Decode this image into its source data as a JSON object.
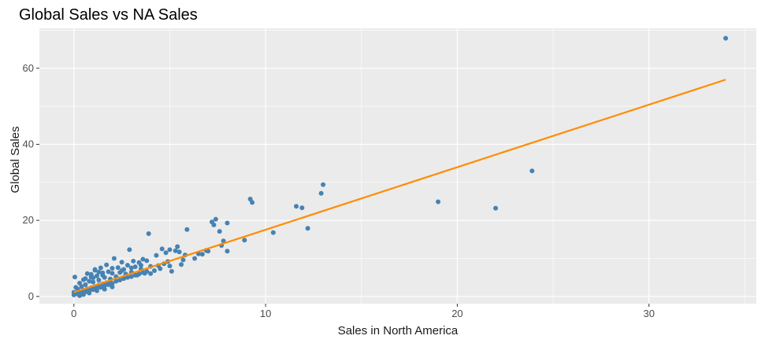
{
  "chart_data": {
    "type": "scatter",
    "title": "Global Sales vs NA Sales",
    "xlabel": "Sales in North America",
    "ylabel": "Global Sales",
    "xlim": [
      -1.8,
      35.6
    ],
    "ylim": [
      -1.9,
      70.5
    ],
    "xticks": [
      0,
      10,
      20,
      30
    ],
    "yticks": [
      0,
      20,
      40,
      60
    ],
    "grid": true,
    "legend": "none",
    "colors": {
      "points": "#4682b4",
      "trend": "#ff8c00",
      "panel": "#ebebeb",
      "grid_major": "#ffffff"
    },
    "series": [
      {
        "values": [
          [
            34.0,
            67.9
          ],
          [
            23.9,
            33.0
          ],
          [
            22.0,
            23.2
          ],
          [
            19.0,
            24.9
          ],
          [
            13.0,
            29.4
          ],
          [
            12.9,
            27.1
          ],
          [
            12.2,
            17.9
          ],
          [
            11.6,
            23.7
          ],
          [
            11.9,
            23.3
          ],
          [
            10.4,
            16.8
          ],
          [
            9.2,
            25.6
          ],
          [
            9.3,
            24.7
          ],
          [
            8.9,
            14.8
          ],
          [
            8.0,
            19.3
          ],
          [
            8.0,
            11.9
          ],
          [
            7.8,
            14.6
          ],
          [
            7.7,
            13.4
          ],
          [
            7.6,
            17.1
          ],
          [
            7.4,
            20.3
          ],
          [
            7.3,
            18.8
          ],
          [
            7.2,
            19.6
          ],
          [
            7.0,
            11.9
          ],
          [
            6.9,
            12.1
          ],
          [
            6.7,
            11.1
          ],
          [
            6.5,
            11.2
          ],
          [
            6.3,
            10.0
          ],
          [
            5.9,
            17.6
          ],
          [
            5.8,
            10.9
          ],
          [
            5.7,
            9.6
          ],
          [
            5.6,
            8.4
          ],
          [
            5.5,
            11.7
          ],
          [
            5.4,
            13.1
          ],
          [
            5.3,
            12.0
          ],
          [
            5.1,
            6.6
          ],
          [
            5.0,
            12.3
          ],
          [
            4.9,
            9.2
          ],
          [
            4.8,
            11.5
          ],
          [
            4.7,
            8.6
          ],
          [
            4.6,
            12.5
          ],
          [
            4.4,
            8.1
          ],
          [
            4.3,
            10.8
          ],
          [
            4.2,
            6.8
          ],
          [
            4.0,
            7.9
          ],
          [
            3.9,
            16.5
          ],
          [
            3.8,
            9.4
          ],
          [
            3.7,
            6.1
          ],
          [
            3.6,
            9.8
          ],
          [
            3.5,
            7.2
          ],
          [
            3.4,
            8.9
          ],
          [
            3.3,
            5.6
          ],
          [
            3.2,
            7.8
          ],
          [
            3.1,
            9.3
          ],
          [
            3.0,
            6.4
          ],
          [
            2.9,
            12.3
          ],
          [
            2.8,
            8.2
          ],
          [
            2.7,
            5.9
          ],
          [
            2.6,
            7.1
          ],
          [
            2.5,
            9.0
          ],
          [
            2.4,
            6.3
          ],
          [
            2.3,
            7.6
          ],
          [
            2.2,
            5.2
          ],
          [
            2.1,
            10.0
          ],
          [
            2.0,
            7.4
          ],
          [
            1.9,
            4.6
          ],
          [
            1.8,
            6.5
          ],
          [
            1.7,
            8.3
          ],
          [
            1.6,
            5.0
          ],
          [
            1.5,
            6.2
          ],
          [
            1.4,
            7.5
          ],
          [
            1.3,
            4.3
          ],
          [
            1.2,
            5.4
          ],
          [
            1.1,
            6.9
          ],
          [
            1.0,
            3.8
          ],
          [
            0.9,
            5.1
          ],
          [
            0.8,
            4.0
          ],
          [
            0.7,
            6.0
          ],
          [
            0.6,
            3.1
          ],
          [
            0.5,
            4.4
          ],
          [
            0.4,
            2.6
          ],
          [
            0.3,
            3.5
          ],
          [
            0.2,
            1.9
          ],
          [
            0.1,
            2.4
          ],
          [
            0.05,
            5.1
          ],
          [
            0.0,
            0.4
          ],
          [
            0.0,
            1.1
          ],
          [
            0.1,
            0.8
          ],
          [
            0.2,
            0.6
          ],
          [
            0.3,
            1.3
          ],
          [
            0.4,
            0.9
          ],
          [
            0.5,
            1.6
          ],
          [
            0.6,
            1.2
          ],
          [
            0.7,
            2.0
          ],
          [
            0.8,
            1.5
          ],
          [
            0.9,
            2.3
          ],
          [
            1.0,
            1.8
          ],
          [
            1.1,
            2.6
          ],
          [
            1.2,
            2.1
          ],
          [
            1.3,
            3.0
          ],
          [
            1.4,
            2.4
          ],
          [
            1.5,
            3.3
          ],
          [
            1.6,
            2.8
          ],
          [
            1.7,
            3.6
          ],
          [
            1.8,
            3.1
          ],
          [
            1.9,
            3.9
          ],
          [
            2.0,
            3.4
          ],
          [
            2.2,
            4.0
          ],
          [
            2.4,
            4.3
          ],
          [
            2.6,
            4.7
          ],
          [
            2.8,
            5.0
          ],
          [
            3.0,
            5.2
          ],
          [
            3.2,
            5.6
          ],
          [
            3.4,
            5.9
          ],
          [
            3.6,
            6.3
          ],
          [
            3.8,
            6.6
          ],
          [
            4.0,
            6.0
          ],
          [
            4.5,
            7.3
          ],
          [
            5.0,
            8.0
          ],
          [
            1.0,
            4.9
          ],
          [
            1.5,
            5.6
          ],
          [
            2.0,
            6.1
          ],
          [
            2.5,
            6.8
          ],
          [
            3.0,
            7.5
          ],
          [
            3.5,
            8.2
          ],
          [
            0.3,
            0.2
          ],
          [
            0.5,
            0.5
          ],
          [
            0.8,
            0.9
          ],
          [
            1.2,
            1.5
          ],
          [
            1.6,
            1.9
          ],
          [
            2.0,
            2.5
          ],
          [
            0.6,
            4.7
          ],
          [
            0.9,
            5.8
          ],
          [
            1.3,
            6.4
          ],
          [
            1.1,
            7.1
          ]
        ]
      }
    ],
    "trend": {
      "x": [
        0.0,
        34.0
      ],
      "y": [
        1.1,
        57.0
      ]
    }
  }
}
